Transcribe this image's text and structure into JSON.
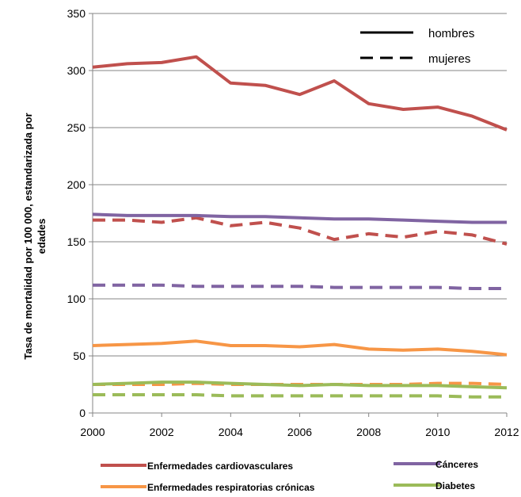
{
  "chart_data": {
    "type": "line",
    "title": "",
    "xlabel": "",
    "ylabel_lines": [
      "Tasa de mortalidad por 100 000, estandarizada por",
      "edades"
    ],
    "xlim": [
      2000,
      2012
    ],
    "ylim": [
      0,
      350
    ],
    "x_ticks": [
      2000,
      2002,
      2004,
      2006,
      2008,
      2010,
      2012
    ],
    "y_ticks": [
      0,
      50,
      100,
      150,
      200,
      250,
      300,
      350
    ],
    "grid": "horizontal",
    "x": [
      2000,
      2001,
      2002,
      2003,
      2004,
      2005,
      2006,
      2007,
      2008,
      2009,
      2010,
      2011,
      2012
    ],
    "style_legend": [
      {
        "label": "hombres",
        "dash": "solid"
      },
      {
        "label": "mujeres",
        "dash": "dashed"
      }
    ],
    "series": [
      {
        "name": "Enfermedades cardiovasculares",
        "color": "#c0504d",
        "sex": "hombres",
        "values": [
          303,
          306,
          307,
          312,
          289,
          287,
          279,
          291,
          271,
          266,
          268,
          260,
          248
        ]
      },
      {
        "name": "Enfermedades cardiovasculares",
        "color": "#c0504d",
        "sex": "mujeres",
        "values": [
          169,
          169,
          167,
          171,
          164,
          167,
          162,
          152,
          157,
          154,
          159,
          156,
          148
        ]
      },
      {
        "name": "Cánceres",
        "color": "#8064a2",
        "sex": "hombres",
        "values": [
          174,
          173,
          173,
          173,
          172,
          172,
          171,
          170,
          170,
          169,
          168,
          167,
          167
        ]
      },
      {
        "name": "Cánceres",
        "color": "#8064a2",
        "sex": "mujeres",
        "values": [
          112,
          112,
          112,
          111,
          111,
          111,
          111,
          110,
          110,
          110,
          110,
          109,
          109
        ]
      },
      {
        "name": "Enfermedades respiratorias crónicas",
        "color": "#f79646",
        "sex": "hombres",
        "values": [
          59,
          60,
          61,
          63,
          59,
          59,
          58,
          60,
          56,
          55,
          56,
          54,
          51
        ]
      },
      {
        "name": "Enfermedades respiratorias crónicas",
        "color": "#f79646",
        "sex": "mujeres",
        "values": [
          25,
          25,
          25,
          26,
          25,
          25,
          25,
          25,
          25,
          25,
          26,
          26,
          25
        ]
      },
      {
        "name": "Diabetes",
        "color": "#9bbb59",
        "sex": "hombres",
        "values": [
          25,
          26,
          27,
          27,
          26,
          25,
          24,
          25,
          24,
          24,
          24,
          23,
          22
        ]
      },
      {
        "name": "Diabetes",
        "color": "#9bbb59",
        "sex": "mujeres",
        "values": [
          16,
          16,
          16,
          16,
          15,
          15,
          15,
          15,
          15,
          15,
          15,
          14,
          14
        ]
      }
    ],
    "legend": [
      {
        "label": "Enfermedades cardiovasculares",
        "color": "#c0504d"
      },
      {
        "label": "Cánceres",
        "color": "#8064a2"
      },
      {
        "label": "Enfermedades respiratorias crónicas",
        "color": "#f79646"
      },
      {
        "label": "Diabetes",
        "color": "#9bbb59"
      }
    ]
  }
}
